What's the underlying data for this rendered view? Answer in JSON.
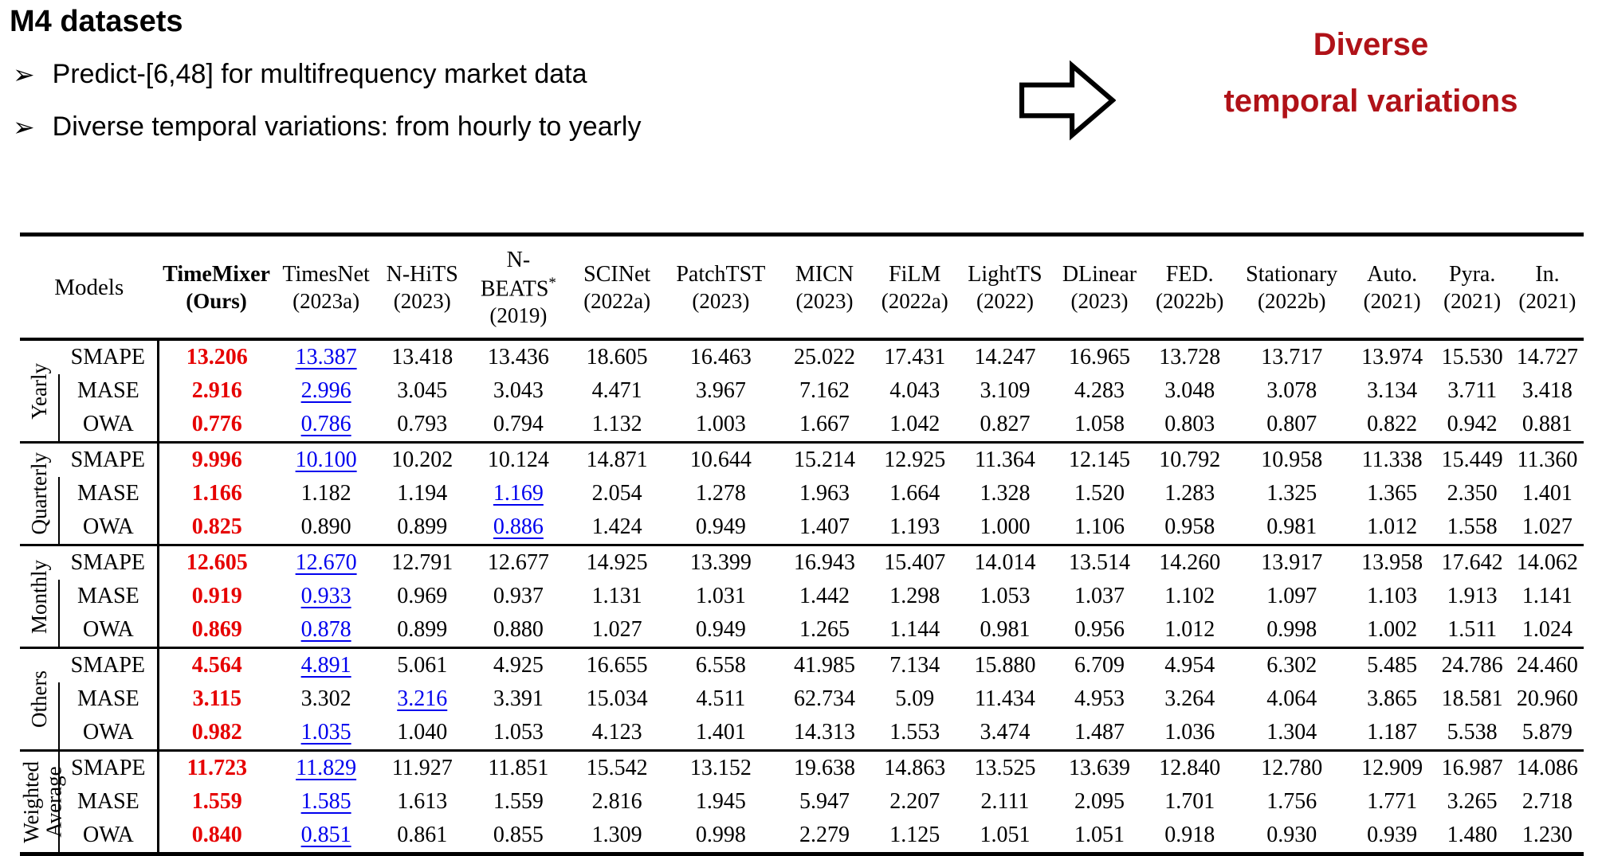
{
  "page": {
    "title": "M4 datasets",
    "bullet_glyph": "➢",
    "bullets": [
      "Predict-[6,48] for multifrequency market data",
      "Diverse temporal variations: from hourly to yearly"
    ],
    "callout_line1": "Diverse",
    "callout_line2": "temporal variations"
  },
  "colors": {
    "callout_red": "#b01218",
    "best_red": "#e60000",
    "second_blue": "#0000ee"
  },
  "chart_data": {
    "type": "table",
    "title": "M4 datasets forecasting results",
    "corner_label": "Models",
    "columns": [
      {
        "name": "TimeMixer",
        "year": "(Ours)",
        "bold": true
      },
      {
        "name": "TimesNet",
        "year": "(2023a)"
      },
      {
        "name": "N-HiTS",
        "year": "(2023)"
      },
      {
        "name": "N-BEATS",
        "sup": "*",
        "year": "(2019)"
      },
      {
        "name": "SCINet",
        "year": "(2022a)"
      },
      {
        "name": "PatchTST",
        "year": "(2023)"
      },
      {
        "name": "MICN",
        "year": "(2023)"
      },
      {
        "name": "FiLM",
        "year": "(2022a)"
      },
      {
        "name": "LightTS",
        "year": "(2022)"
      },
      {
        "name": "DLinear",
        "year": "(2023)"
      },
      {
        "name": "FED.",
        "year": "(2022b)"
      },
      {
        "name": "Stationary",
        "year": "(2022b)"
      },
      {
        "name": "Auto.",
        "year": "(2021)"
      },
      {
        "name": "Pyra.",
        "year": "(2021)"
      },
      {
        "name": "In.",
        "year": "(2021)"
      }
    ],
    "groups": [
      {
        "label": "Yearly",
        "rows": [
          {
            "metric": "SMAPE",
            "best": 0,
            "second": 1,
            "values": [
              "13.206",
              "13.387",
              "13.418",
              "13.436",
              "18.605",
              "16.463",
              "25.022",
              "17.431",
              "14.247",
              "16.965",
              "13.728",
              "13.717",
              "13.974",
              "15.530",
              "14.727"
            ]
          },
          {
            "metric": "MASE",
            "best": 0,
            "second": 1,
            "values": [
              "2.916",
              "2.996",
              "3.045",
              "3.043",
              "4.471",
              "3.967",
              "7.162",
              "4.043",
              "3.109",
              "4.283",
              "3.048",
              "3.078",
              "3.134",
              "3.711",
              "3.418"
            ]
          },
          {
            "metric": "OWA",
            "best": 0,
            "second": 1,
            "values": [
              "0.776",
              "0.786",
              "0.793",
              "0.794",
              "1.132",
              "1.003",
              "1.667",
              "1.042",
              "0.827",
              "1.058",
              "0.803",
              "0.807",
              "0.822",
              "0.942",
              "0.881"
            ]
          }
        ]
      },
      {
        "label": "Quarterly",
        "rows": [
          {
            "metric": "SMAPE",
            "best": 0,
            "second": 1,
            "values": [
              "9.996",
              "10.100",
              "10.202",
              "10.124",
              "14.871",
              "10.644",
              "15.214",
              "12.925",
              "11.364",
              "12.145",
              "10.792",
              "10.958",
              "11.338",
              "15.449",
              "11.360"
            ]
          },
          {
            "metric": "MASE",
            "best": 0,
            "second": 3,
            "values": [
              "1.166",
              "1.182",
              "1.194",
              "1.169",
              "2.054",
              "1.278",
              "1.963",
              "1.664",
              "1.328",
              "1.520",
              "1.283",
              "1.325",
              "1.365",
              "2.350",
              "1.401"
            ]
          },
          {
            "metric": "OWA",
            "best": 0,
            "second": 3,
            "values": [
              "0.825",
              "0.890",
              "0.899",
              "0.886",
              "1.424",
              "0.949",
              "1.407",
              "1.193",
              "1.000",
              "1.106",
              "0.958",
              "0.981",
              "1.012",
              "1.558",
              "1.027"
            ]
          }
        ]
      },
      {
        "label": "Monthly",
        "rows": [
          {
            "metric": "SMAPE",
            "best": 0,
            "second": 1,
            "values": [
              "12.605",
              "12.670",
              "12.791",
              "12.677",
              "14.925",
              "13.399",
              "16.943",
              "15.407",
              "14.014",
              "13.514",
              "14.260",
              "13.917",
              "13.958",
              "17.642",
              "14.062"
            ]
          },
          {
            "metric": "MASE",
            "best": 0,
            "second": 1,
            "values": [
              "0.919",
              "0.933",
              "0.969",
              "0.937",
              "1.131",
              "1.031",
              "1.442",
              "1.298",
              "1.053",
              "1.037",
              "1.102",
              "1.097",
              "1.103",
              "1.913",
              "1.141"
            ]
          },
          {
            "metric": "OWA",
            "best": 0,
            "second": 1,
            "values": [
              "0.869",
              "0.878",
              "0.899",
              "0.880",
              "1.027",
              "0.949",
              "1.265",
              "1.144",
              "0.981",
              "0.956",
              "1.012",
              "0.998",
              "1.002",
              "1.511",
              "1.024"
            ]
          }
        ]
      },
      {
        "label": "Others",
        "rows": [
          {
            "metric": "SMAPE",
            "best": 0,
            "second": 1,
            "values": [
              "4.564",
              "4.891",
              "5.061",
              "4.925",
              "16.655",
              "6.558",
              "41.985",
              "7.134",
              "15.880",
              "6.709",
              "4.954",
              "6.302",
              "5.485",
              "24.786",
              "24.460"
            ]
          },
          {
            "metric": "MASE",
            "best": 0,
            "second": 2,
            "values": [
              "3.115",
              "3.302",
              "3.216",
              "3.391",
              "15.034",
              "4.511",
              "62.734",
              "5.09",
              "11.434",
              "4.953",
              "3.264",
              "4.064",
              "3.865",
              "18.581",
              "20.960"
            ]
          },
          {
            "metric": "OWA",
            "best": 0,
            "second": 1,
            "values": [
              "0.982",
              "1.035",
              "1.040",
              "1.053",
              "4.123",
              "1.401",
              "14.313",
              "1.553",
              "3.474",
              "1.487",
              "1.036",
              "1.304",
              "1.187",
              "5.538",
              "5.879"
            ]
          }
        ]
      },
      {
        "label": "Weighted\nAverage",
        "rows": [
          {
            "metric": "SMAPE",
            "best": 0,
            "second": 1,
            "values": [
              "11.723",
              "11.829",
              "11.927",
              "11.851",
              "15.542",
              "13.152",
              "19.638",
              "14.863",
              "13.525",
              "13.639",
              "12.840",
              "12.780",
              "12.909",
              "16.987",
              "14.086"
            ]
          },
          {
            "metric": "MASE",
            "best": 0,
            "second": 1,
            "values": [
              "1.559",
              "1.585",
              "1.613",
              "1.559",
              "2.816",
              "1.945",
              "5.947",
              "2.207",
              "2.111",
              "2.095",
              "1.701",
              "1.756",
              "1.771",
              "3.265",
              "2.718"
            ]
          },
          {
            "metric": "OWA",
            "best": 0,
            "second": 1,
            "values": [
              "0.840",
              "0.851",
              "0.861",
              "0.855",
              "1.309",
              "0.998",
              "2.279",
              "1.125",
              "1.051",
              "1.051",
              "0.918",
              "0.930",
              "0.939",
              "1.480",
              "1.230"
            ]
          }
        ]
      }
    ]
  }
}
